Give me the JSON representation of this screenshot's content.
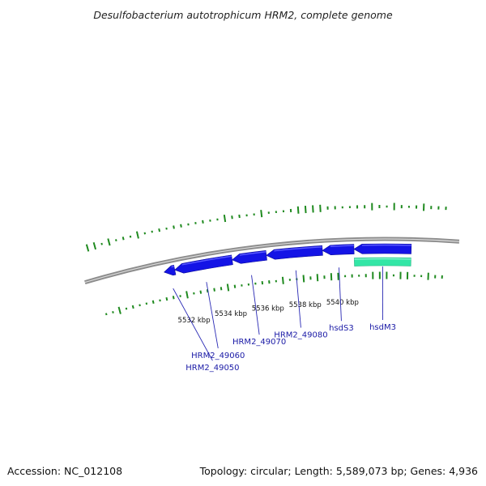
{
  "title": "Desulfobacterium autotrophicum HRM2, complete genome",
  "footer": {
    "accession": "Accession: NC_012108",
    "summary": "Topology: circular; Length: 5,589,073 bp; Genes: 4,936"
  },
  "colors": {
    "backbone": "#8c8c8c",
    "cds": "#1414e6",
    "cds_highlight": "#5c5cff",
    "rna_gene": "#33e6a6",
    "gc_skew": "#1f8a1f",
    "gene_label": "#1a1aa6",
    "leader_line": "#2828b4"
  },
  "tick_labels": [
    {
      "kbp": 5532,
      "label": "5532 kbp"
    },
    {
      "kbp": 5534,
      "label": "5534 kbp"
    },
    {
      "kbp": 5536,
      "label": "5536 kbp"
    },
    {
      "kbp": 5538,
      "label": "5538 kbp"
    },
    {
      "kbp": 5540,
      "label": "5540 kbp"
    }
  ],
  "genes": [
    {
      "name": "HRM2_49050",
      "strand": "-",
      "start_kbp": 5531.0,
      "end_kbp": 5531.55
    },
    {
      "name": "HRM2_49060",
      "strand": "-",
      "start_kbp": 5531.55,
      "end_kbp": 5534.5
    },
    {
      "name": "HRM2_49070",
      "strand": "-",
      "start_kbp": 5534.5,
      "end_kbp": 5536.25
    },
    {
      "name": "HRM2_49080",
      "strand": "-",
      "start_kbp": 5536.25,
      "end_kbp": 5539.1
    },
    {
      "name": "hsdS3",
      "strand": "-",
      "start_kbp": 5539.1,
      "end_kbp": 5540.7
    },
    {
      "name": "hsdM3",
      "strand": "-",
      "start_kbp": 5540.7,
      "end_kbp": 5543.6
    }
  ],
  "rna_features": [
    {
      "strand": "-",
      "start_kbp": 5540.7,
      "end_kbp": 5543.6
    }
  ]
}
